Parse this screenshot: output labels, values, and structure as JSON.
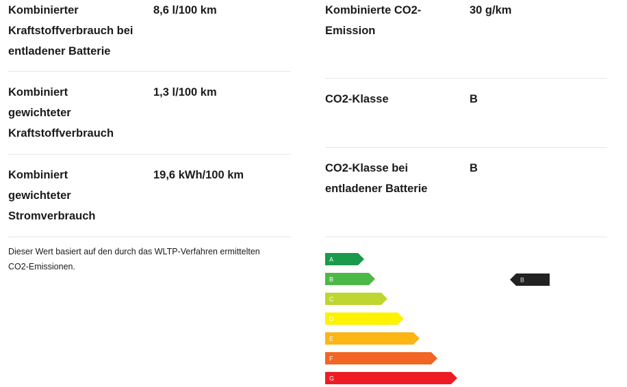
{
  "left_rows": [
    {
      "label": [
        "Kombinierter",
        "Kraftstoffverbrauch bei",
        "entladener Batterie"
      ],
      "value": "8,6 l/100 km"
    },
    {
      "label": [
        "Kombiniert",
        "gewichteter",
        "Kraftstoffverbrauch"
      ],
      "value": "1,3 l/100 km"
    },
    {
      "label": [
        "Kombiniert",
        "gewichteter",
        "Stromverbrauch"
      ],
      "value": "19,6 kWh/100 km"
    }
  ],
  "note": [
    "Dieser Wert basiert auf den durch das WLTP-Verfahren ermittelten",
    "CO2-Emissionen."
  ],
  "right_rows": [
    {
      "label": [
        "Kombinierte CO2-",
        "Emission"
      ],
      "value": "30 g/km"
    },
    {
      "label": [
        "CO2-Klasse"
      ],
      "value": "B"
    },
    {
      "label": [
        "CO2-Klasse bei",
        "entladener Batterie"
      ],
      "value": "B"
    }
  ],
  "energy_label": {
    "classes": [
      "A",
      "B",
      "C",
      "D",
      "E",
      "F",
      "G"
    ],
    "indicator": "B"
  }
}
